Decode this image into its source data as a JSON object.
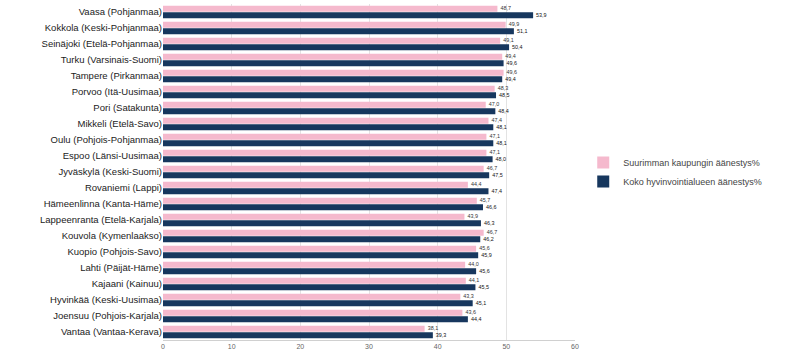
{
  "chart_data": {
    "type": "bar",
    "orientation": "horizontal",
    "grid": true,
    "legend": "right",
    "data_labels": true,
    "categories": [
      "Vaasa (Pohjanmaa)",
      "Kokkola (Keski-Pohjanmaa)",
      "Seinäjoki (Etelä-Pohjanmaa)",
      "Turku (Varsinais-Suomi)",
      "Tampere (Pirkanmaa)",
      "Porvoo (Itä-Uusimaa)",
      "Pori (Satakunta)",
      "Mikkeli (Etelä-Savo)",
      "Oulu (Pohjois-Pohjanmaa)",
      "Espoo (Länsi-Uusimaa)",
      "Jyväskylä (Keski-Suomi)",
      "Rovaniemi (Lappi)",
      "Hämeenlinna (Kanta-Häme)",
      "Lappeenranta (Etelä-Karjala)",
      "Kouvola (Kymenlaakso)",
      "Kuopio (Pohjois-Savo)",
      "Lahti (Päijät-Häme)",
      "Kajaani (Kainuu)",
      "Hyvinkää (Keski-Uusimaa)",
      "Joensuu (Pohjois-Karjala)",
      "Vantaa (Vantaa-Kerava)"
    ],
    "series": [
      {
        "name": "Suurimman kaupungin äänestys%",
        "color": "#f5b9cd",
        "values": [
          48.7,
          49.9,
          49.1,
          49.4,
          49.6,
          48.3,
          47.0,
          47.4,
          47.1,
          47.1,
          46.7,
          44.4,
          45.7,
          43.9,
          46.7,
          45.6,
          44.0,
          44.1,
          43.3,
          43.6,
          38.1
        ],
        "value_labels": [
          "48,7",
          "49,9",
          "49,1",
          "49,4",
          "49,6",
          "48,3",
          "47,0",
          "47,4",
          "47,1",
          "47,1",
          "46,7",
          "44,4",
          "45,7",
          "43,9",
          "46,7",
          "45,6",
          "44,0",
          "44,1",
          "43,3",
          "43,6",
          "38,1"
        ]
      },
      {
        "name": "Koko hyvinvointialueen äänestys%",
        "color": "#17375e",
        "values": [
          53.9,
          51.1,
          50.4,
          49.6,
          49.4,
          48.5,
          48.4,
          48.1,
          48.1,
          48.0,
          47.5,
          47.4,
          46.6,
          46.3,
          46.2,
          45.9,
          45.6,
          45.5,
          45.1,
          44.4,
          39.3
        ],
        "value_labels": [
          "53,9",
          "51,1",
          "50,4",
          "49,6",
          "49,4",
          "48,5",
          "48,4",
          "48,1",
          "48,1",
          "48,0",
          "47,5",
          "47,4",
          "46,6",
          "46,3",
          "46,2",
          "45,9",
          "45,6",
          "45,5",
          "45,1",
          "44,4",
          "39,3"
        ]
      }
    ],
    "xlim": [
      0,
      60
    ],
    "xticks": [
      0,
      10,
      20,
      30,
      40,
      50,
      60
    ]
  }
}
